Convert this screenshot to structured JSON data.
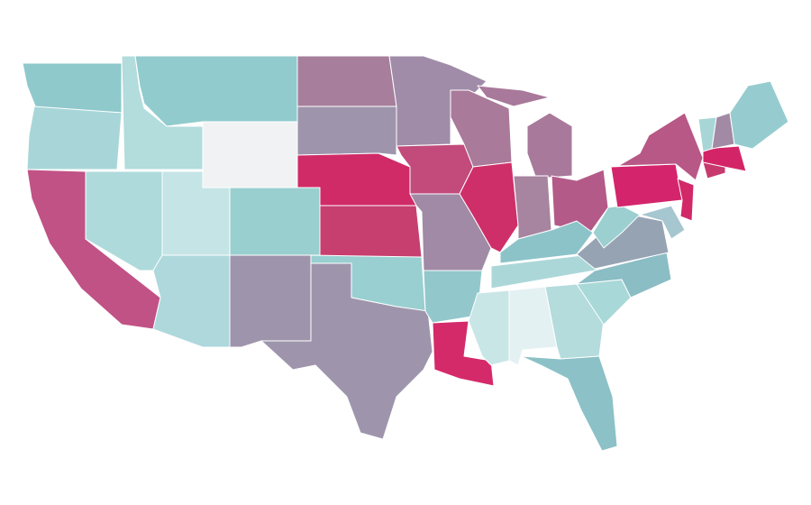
{
  "map": {
    "regions": [
      {
        "color": "#8fc9cc"
      },
      {
        "color": "#a8d6d8"
      },
      {
        "color": "#c15285"
      },
      {
        "color": "#aedadb"
      },
      {
        "color": "#b3dcdc"
      },
      {
        "color": "#91cbcd"
      },
      {
        "color": "#f1f2f3"
      },
      {
        "color": "#c5e4e5"
      },
      {
        "color": "#9acfcf"
      },
      {
        "color": "#aed8db"
      },
      {
        "color": "#9e95ad"
      },
      {
        "color": "#a77e9c"
      },
      {
        "color": "#9e95ad"
      },
      {
        "color": "#d02a67"
      },
      {
        "color": "#c63f6f"
      },
      {
        "color": "#99cfd0"
      },
      {
        "color": "#9e95ad"
      },
      {
        "color": "#a08ca8"
      },
      {
        "color": "#c24b7c"
      },
      {
        "color": "#a08aa5"
      },
      {
        "color": "#92c8cc"
      },
      {
        "color": "#d42a6a"
      },
      {
        "color": "#a97a9a"
      },
      {
        "color": "#cf2f69"
      },
      {
        "color": "#a8799a"
      },
      {
        "color": "#a8799a"
      },
      {
        "color": "#a7849f"
      },
      {
        "color": "#b35a88"
      },
      {
        "color": "#8cc3c9"
      },
      {
        "color": "#acd7d9"
      },
      {
        "color": "#c9e6e7"
      },
      {
        "color": "#e4f1f2"
      },
      {
        "color": "#b4dcdc"
      },
      {
        "color": "#8bc1c7"
      },
      {
        "color": "#a9d8d8"
      },
      {
        "color": "#8bbdc5"
      },
      {
        "color": "#96a3b3"
      },
      {
        "color": "#9bcfd0"
      },
      {
        "color": "#d4256c"
      },
      {
        "color": "#b85887"
      },
      {
        "color": "#d22868"
      },
      {
        "color": "#a6c6d0"
      },
      {
        "color": "#c7396d"
      },
      {
        "color": "#d42468"
      },
      {
        "color": "#a8d6d7"
      },
      {
        "color": "#a28aa5"
      },
      {
        "color": "#96cccf"
      }
    ]
  }
}
